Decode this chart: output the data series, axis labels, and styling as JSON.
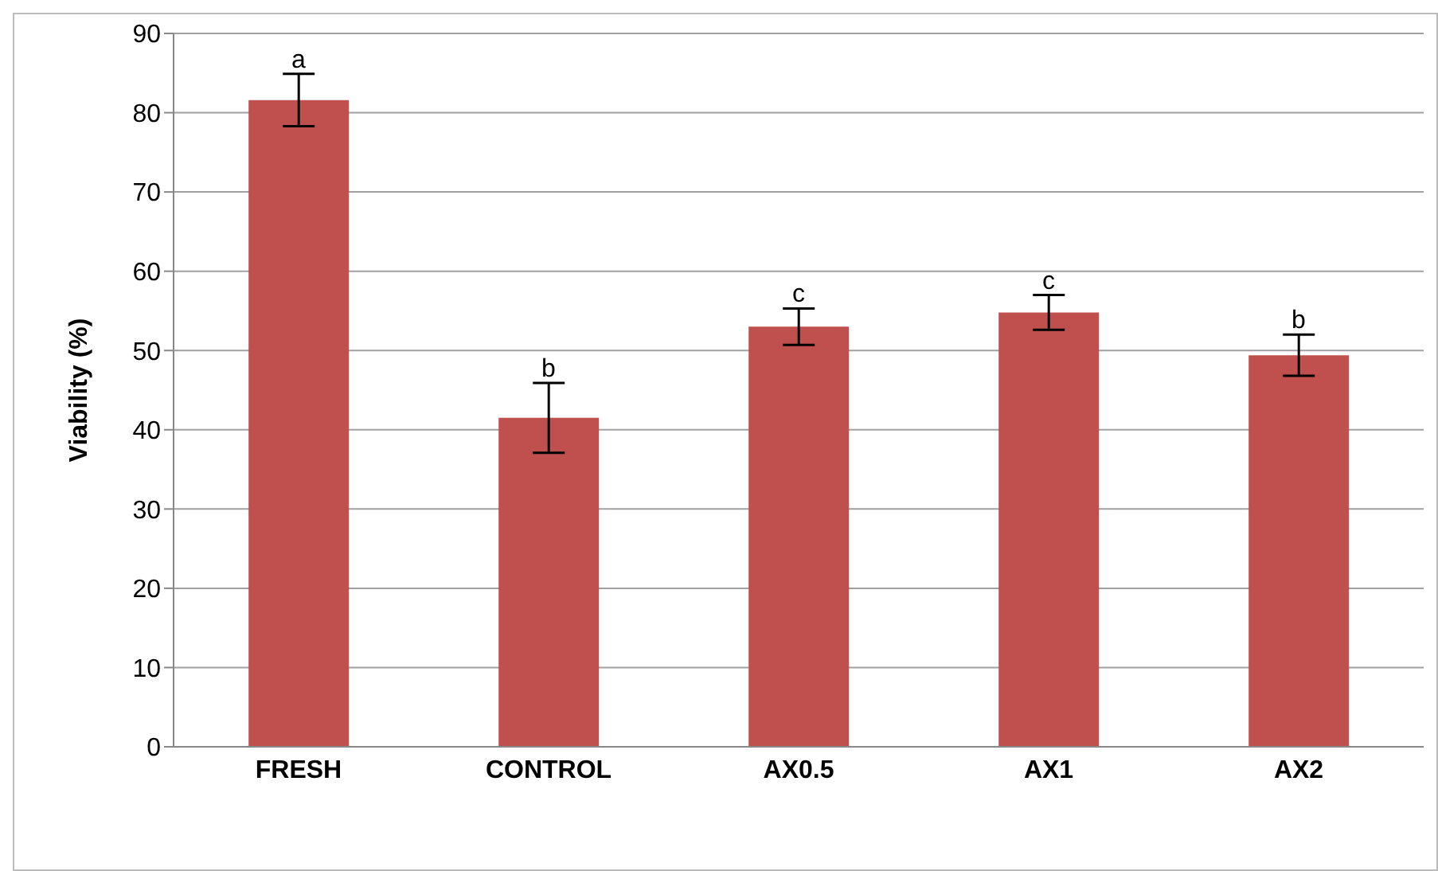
{
  "chart_data": {
    "type": "bar",
    "ylabel": "Viability (%)",
    "categories": [
      "FRESH",
      "CONTROL",
      "AX0.5",
      "AX1",
      "AX2"
    ],
    "values": [
      81.6,
      41.5,
      53.0,
      54.8,
      49.4
    ],
    "errors": [
      3.3,
      4.4,
      2.3,
      2.2,
      2.6
    ],
    "color": "#c0504d",
    "ylim": [
      0,
      90
    ],
    "yticks": [
      0,
      10,
      20,
      30,
      40,
      50,
      60,
      70,
      80,
      90
    ],
    "grid": "y",
    "annotations": [
      {
        "text": "a",
        "x": "FRESH",
        "y": 84.9
      },
      {
        "text": "b",
        "x": "CONTROL",
        "y": 45.9
      },
      {
        "text": "c",
        "x": "AX0.5",
        "y": 55.3
      },
      {
        "text": "c",
        "x": "AX1",
        "y": 57.0
      },
      {
        "text": "b",
        "x": "AX2",
        "y": 52.0
      }
    ]
  }
}
